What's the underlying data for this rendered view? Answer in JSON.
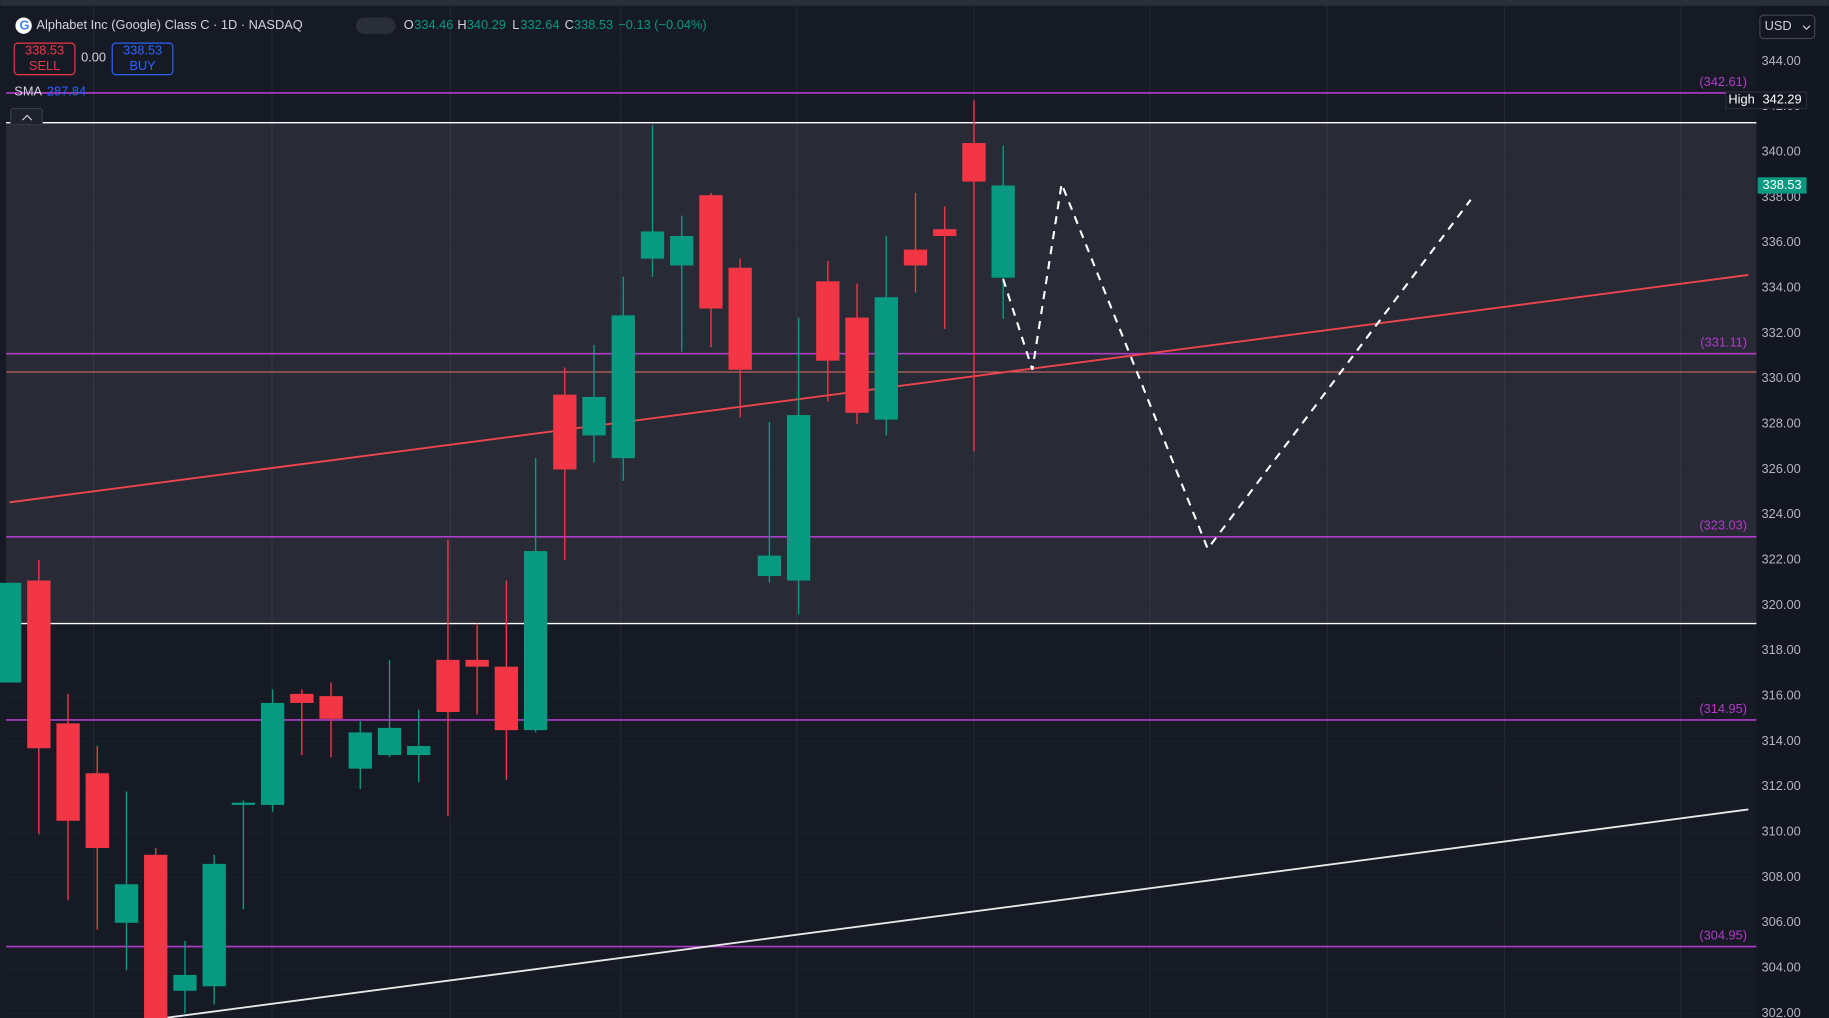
{
  "chart_data": {
    "type": "candlestick",
    "title": "Alphabet Inc (Google) Class C · 1D · NASDAQ",
    "ohlc_keys": [
      "O",
      "H",
      "L",
      "C"
    ],
    "change": "−0.13 (−0.04%)",
    "sell_label": "SELL",
    "buy_label": "BUY",
    "spread": "0.00",
    "indicator": {
      "name": "SMA",
      "value": 287.84
    },
    "currency": "USD",
    "high_label": "High",
    "up_color": "#089981",
    "down_color": "#f23645",
    "ylim": [
      301.8,
      346.3
    ],
    "yticks": [
      {
        "value": 302,
        "label": "302.00"
      },
      {
        "value": 304,
        "label": "304.00"
      },
      {
        "value": 306,
        "label": "306.00"
      },
      {
        "value": 308,
        "label": "308.00"
      },
      {
        "value": 310,
        "label": "310.00"
      },
      {
        "value": 312,
        "label": "312.00"
      },
      {
        "value": 314,
        "label": "314.00"
      },
      {
        "value": 316,
        "label": "316.00"
      },
      {
        "value": 318,
        "label": "318.00"
      },
      {
        "value": 320,
        "label": "320.00"
      },
      {
        "value": 322,
        "label": "322.00"
      },
      {
        "value": 324,
        "label": "324.00"
      },
      {
        "value": 326,
        "label": "326.00"
      },
      {
        "value": 328,
        "label": "328.00"
      },
      {
        "value": 330,
        "label": "330.00"
      },
      {
        "value": 332,
        "label": "332.00"
      },
      {
        "value": 334,
        "label": "334.00"
      },
      {
        "value": 336,
        "label": "336.00"
      },
      {
        "value": 338,
        "label": "338.00"
      },
      {
        "value": 340,
        "label": "340.00"
      },
      {
        "value": 342,
        "label": "342.00"
      },
      {
        "value": 344,
        "label": "344.00"
      }
    ],
    "candles": [
      {
        "open": 316.6,
        "high": 321.0,
        "low": 316.6,
        "close": 321.0
      },
      {
        "open": 321.1,
        "high": 322.0,
        "low": 309.9,
        "close": 313.7
      },
      {
        "open": 314.8,
        "high": 316.1,
        "low": 307.0,
        "close": 310.5
      },
      {
        "open": 312.6,
        "high": 313.8,
        "low": 305.7,
        "close": 309.3
      },
      {
        "open": 306.0,
        "high": 311.8,
        "low": 303.9,
        "close": 307.7
      },
      {
        "open": 309.0,
        "high": 309.3,
        "low": 301.5,
        "close": 301.8
      },
      {
        "open": 303.0,
        "high": 305.2,
        "low": 302.0,
        "close": 303.7
      },
      {
        "open": 303.2,
        "high": 309.0,
        "low": 302.4,
        "close": 308.6
      },
      {
        "open": 311.2,
        "high": 311.4,
        "low": 306.6,
        "close": 311.3
      },
      {
        "open": 311.2,
        "high": 316.3,
        "low": 310.9,
        "close": 315.7
      },
      {
        "open": 316.1,
        "high": 316.3,
        "low": 313.4,
        "close": 315.7
      },
      {
        "open": 316.0,
        "high": 316.6,
        "low": 313.3,
        "close": 315.0
      },
      {
        "open": 312.8,
        "high": 314.9,
        "low": 311.9,
        "close": 314.4
      },
      {
        "open": 313.4,
        "high": 317.6,
        "low": 313.3,
        "close": 314.6
      },
      {
        "open": 313.4,
        "high": 315.4,
        "low": 312.2,
        "close": 313.8
      },
      {
        "open": 317.6,
        "high": 322.9,
        "low": 310.7,
        "close": 315.3
      },
      {
        "open": 317.6,
        "high": 319.2,
        "low": 315.2,
        "close": 317.3
      },
      {
        "open": 317.3,
        "high": 321.1,
        "low": 312.3,
        "close": 314.5
      },
      {
        "open": 314.5,
        "high": 326.5,
        "low": 314.4,
        "close": 322.4
      },
      {
        "open": 329.3,
        "high": 330.5,
        "low": 322.0,
        "close": 326.0
      },
      {
        "open": 327.5,
        "high": 331.5,
        "low": 326.3,
        "close": 329.2
      },
      {
        "open": 326.5,
        "high": 334.5,
        "low": 325.5,
        "close": 332.8
      },
      {
        "open": 335.3,
        "high": 341.2,
        "low": 334.5,
        "close": 336.5
      },
      {
        "open": 335.0,
        "high": 337.2,
        "low": 331.2,
        "close": 336.3
      },
      {
        "open": 338.1,
        "high": 338.2,
        "low": 331.4,
        "close": 333.1
      },
      {
        "open": 334.9,
        "high": 335.3,
        "low": 328.3,
        "close": 330.4
      },
      {
        "open": 321.3,
        "high": 328.1,
        "low": 321.0,
        "close": 322.2
      },
      {
        "open": 321.1,
        "high": 332.7,
        "low": 319.6,
        "close": 328.4
      },
      {
        "open": 334.3,
        "high": 335.2,
        "low": 329.0,
        "close": 330.8
      },
      {
        "open": 332.7,
        "high": 334.2,
        "low": 328.0,
        "close": 328.5
      },
      {
        "open": 328.2,
        "high": 336.3,
        "low": 327.5,
        "close": 333.6
      },
      {
        "open": 335.7,
        "high": 338.2,
        "low": 333.8,
        "close": 335.0
      },
      {
        "open": 336.6,
        "high": 337.6,
        "low": 332.2,
        "close": 336.3
      },
      {
        "open": 340.4,
        "high": 342.29,
        "low": 326.8,
        "close": 338.7
      },
      {
        "open": 334.46,
        "high": 340.29,
        "low": 332.64,
        "close": 338.53
      }
    ],
    "levels": [
      {
        "value": 342.61,
        "label": "(342.61)"
      },
      {
        "value": 331.11,
        "label": "(331.11)"
      },
      {
        "value": 323.03,
        "label": "(323.03)"
      },
      {
        "value": 314.95,
        "label": "(314.95)"
      },
      {
        "value": 304.95,
        "label": "(304.95)"
      }
    ],
    "level_color": "#b03cc8",
    "zone": {
      "top": 341.3,
      "bottom": 319.2
    },
    "support": 330.3,
    "trendlines": [
      {
        "color": "#f0454e",
        "x": [
          0,
          59.5
        ],
        "y": [
          324.55,
          334.58
        ]
      },
      {
        "color": "#e8e8e8",
        "x": [
          5.3,
          59.5
        ],
        "y": [
          301.8,
          311.0
        ]
      }
    ],
    "projection": {
      "x": [
        34,
        35,
        36,
        41,
        50
      ],
      "y": [
        334.4,
        330.4,
        338.6,
        322.5,
        337.9
      ]
    }
  }
}
